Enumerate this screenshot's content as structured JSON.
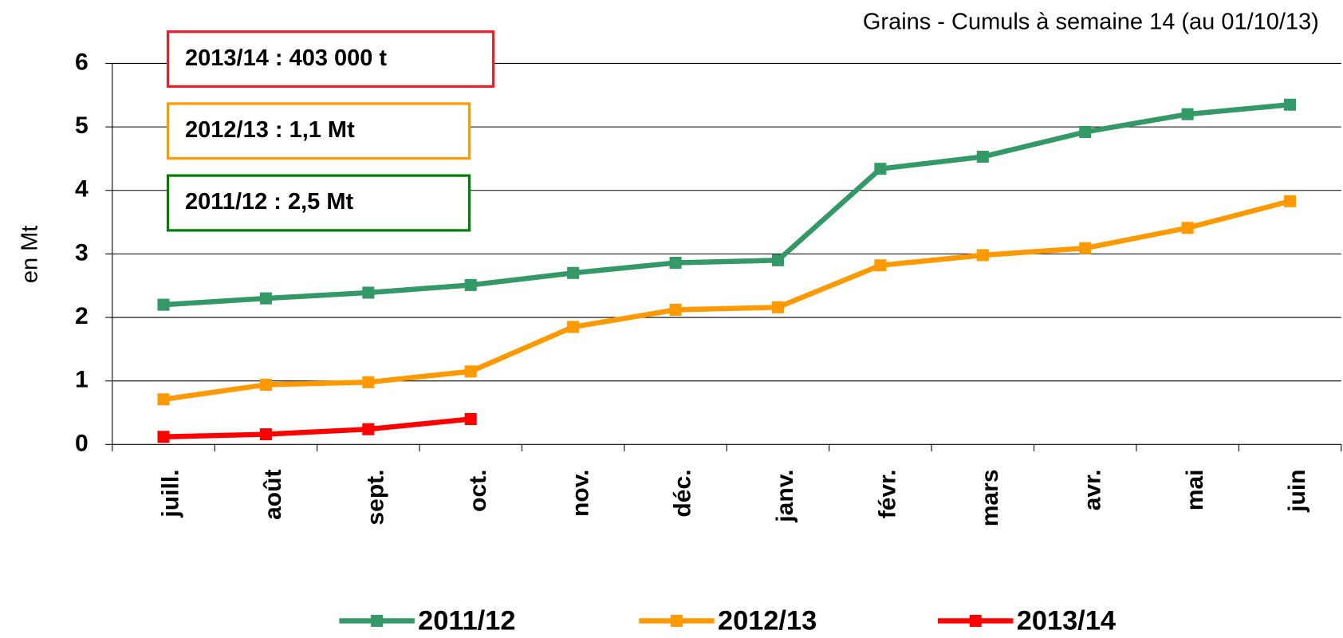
{
  "chart_data": {
    "type": "line",
    "title": "Grains - Cumuls à semaine 14 (au 01/10/13)",
    "y_label": "en Mt",
    "categories": [
      "juill.",
      "août",
      "sept.",
      "oct.",
      "nov.",
      "déc.",
      "janv.",
      "févr.",
      "mars",
      "avr.",
      "mai",
      "juin"
    ],
    "series": [
      {
        "name": "2011/12",
        "color": "#339966",
        "values": [
          2.2,
          2.3,
          2.39,
          2.51,
          2.7,
          2.86,
          2.9,
          4.34,
          4.53,
          4.92,
          5.2,
          5.35
        ]
      },
      {
        "name": "2012/13",
        "color": "#ff9900",
        "values": [
          0.71,
          0.94,
          0.98,
          1.15,
          1.85,
          2.12,
          2.16,
          2.82,
          2.98,
          3.09,
          3.41,
          3.83
        ]
      },
      {
        "name": "2013/14",
        "color": "#ff0000",
        "values": [
          0.12,
          0.16,
          0.24,
          0.4,
          null,
          null,
          null,
          null,
          null,
          null,
          null,
          null
        ]
      }
    ],
    "annotations": [
      {
        "text": "2013/14 :  403 000 t",
        "color": "#ee1c25"
      },
      {
        "text": "2012/13 : 1,1 Mt",
        "color": "#ff9900"
      },
      {
        "text": "2011/12 : 2,5 Mt",
        "color": "#008000"
      }
    ],
    "ylim": [
      0,
      6
    ],
    "yticks": [
      0,
      1,
      2,
      3,
      4,
      5,
      6
    ],
    "grid": true,
    "legend": "bottom"
  }
}
